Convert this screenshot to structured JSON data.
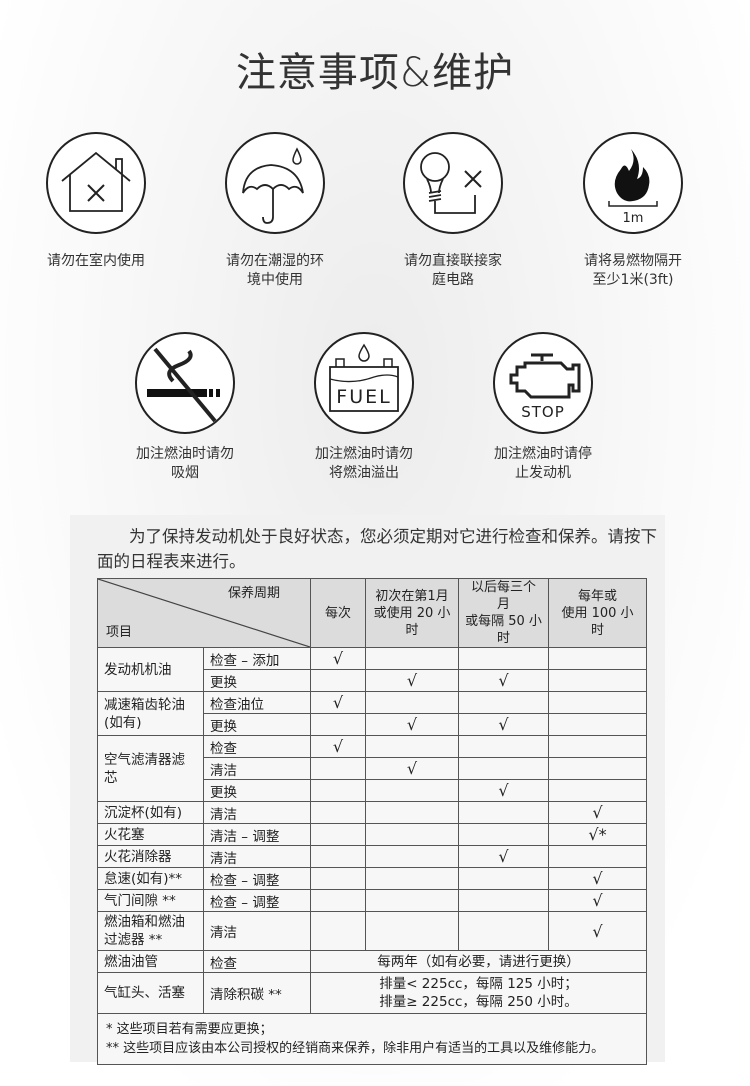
{
  "page_title": "注意事项&维护",
  "warnings": [
    {
      "icon": "house-x-icon",
      "caption": [
        "请勿在室内使用"
      ]
    },
    {
      "icon": "umbrella-rain-icon",
      "caption": [
        "请勿在潮湿的环",
        "境中使用"
      ]
    },
    {
      "icon": "bulb-plug-x-icon",
      "caption": [
        "请勿直接联接家",
        "庭电路"
      ]
    },
    {
      "icon": "fire-distance-icon",
      "icon_label": "1m",
      "caption": [
        "请将易燃物隔开",
        "至少1米(3ft)"
      ]
    },
    {
      "icon": "no-smoking-icon",
      "caption": [
        "加注燃油时请勿",
        "吸烟"
      ]
    },
    {
      "icon": "fuel-tank-icon",
      "icon_label": "FUEL",
      "caption": [
        "加注燃油时请勿",
        "将燃油溢出"
      ]
    },
    {
      "icon": "engine-stop-icon",
      "icon_label": "STOP",
      "caption": [
        "加注燃油时请停",
        "止发动机"
      ]
    }
  ],
  "intro": "为了保持发动机处于良好状态，您必须定期对它进行检查和保养。请按下面的日程表来进行。",
  "table": {
    "header": {
      "period_label": "保养周期",
      "item_label": "项目",
      "columns": [
        [
          "每次"
        ],
        [
          "初次在第1月",
          "或使用 20 小时"
        ],
        [
          "以后每三个月",
          "或每隔 50 小时"
        ],
        [
          "每年或",
          "使用 100 小时"
        ]
      ]
    },
    "check_mark": "√",
    "groups": [
      {
        "item": "发动机机油",
        "rows": [
          {
            "action": "检查 – 添加",
            "checks": [
              "√",
              "",
              "",
              ""
            ]
          },
          {
            "action": "更换",
            "checks": [
              "",
              "√",
              "√",
              ""
            ]
          }
        ]
      },
      {
        "item": "减速箱齿轮油(如有)",
        "rows": [
          {
            "action": "检查油位",
            "checks": [
              "√",
              "",
              "",
              ""
            ]
          },
          {
            "action": "更换",
            "checks": [
              "",
              "√",
              "√",
              ""
            ]
          }
        ]
      },
      {
        "item": "空气滤清器滤芯",
        "rows": [
          {
            "action": "检查",
            "checks": [
              "√",
              "",
              "",
              ""
            ]
          },
          {
            "action": "清洁",
            "checks": [
              "",
              "√",
              "",
              ""
            ]
          },
          {
            "action": "更换",
            "checks": [
              "",
              "",
              "√",
              ""
            ]
          }
        ]
      },
      {
        "item": "沉淀杯(如有)",
        "rows": [
          {
            "action": "清洁",
            "checks": [
              "",
              "",
              "",
              "√"
            ]
          }
        ]
      },
      {
        "item": "火花塞",
        "rows": [
          {
            "action": "清洁 – 调整",
            "checks": [
              "",
              "",
              "",
              "√*"
            ]
          }
        ]
      },
      {
        "item": "火花消除器",
        "rows": [
          {
            "action": "清洁",
            "checks": [
              "",
              "",
              "√",
              ""
            ]
          }
        ]
      },
      {
        "item": "怠速(如有)**",
        "rows": [
          {
            "action": "检查 – 调整",
            "checks": [
              "",
              "",
              "",
              "√"
            ]
          }
        ]
      },
      {
        "item": "气门间隙 **",
        "rows": [
          {
            "action": "检查 – 调整",
            "checks": [
              "",
              "",
              "",
              "√"
            ]
          }
        ]
      },
      {
        "item": "燃油箱和燃油过滤器 **",
        "rows": [
          {
            "action": "清洁",
            "checks": [
              "",
              "",
              "",
              "√"
            ]
          }
        ]
      },
      {
        "item": "燃油油管",
        "rows": [
          {
            "action": "检查",
            "merged": [
              "每两年（如有必要，请进行更换）"
            ]
          }
        ]
      },
      {
        "item": "气缸头、活塞",
        "rows": [
          {
            "action": "清除积碳 **",
            "merged": [
              "排量< 225cc，每隔 125 小时；",
              "排量≥ 225cc，每隔 250 小时。"
            ]
          }
        ]
      }
    ],
    "notes": [
      "*  这些项目若有需要应更换；",
      "** 这些项目应该由本公司授权的经销商来保养，除非用户有适当的工具以及维修能力。"
    ]
  }
}
